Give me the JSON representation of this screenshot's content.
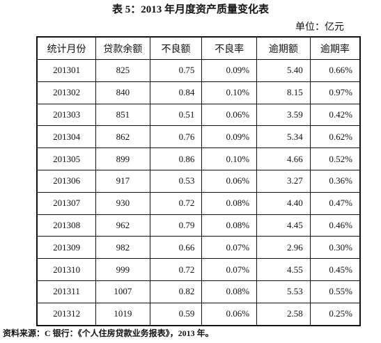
{
  "header": {
    "title": "表 5：2013 年月度资产质量变化表",
    "unit": "单位：亿元"
  },
  "table": {
    "columns": [
      "统计月份",
      "贷款余额",
      "不良额",
      "不良率",
      "逾期额",
      "逾期率"
    ],
    "rows": [
      [
        "201301",
        "825",
        "0.75",
        "0.09%",
        "5.40",
        "0.66%"
      ],
      [
        "201302",
        "840",
        "0.84",
        "0.10%",
        "8.15",
        "0.97%"
      ],
      [
        "201303",
        "851",
        "0.51",
        "0.06%",
        "3.59",
        "0.42%"
      ],
      [
        "201304",
        "862",
        "0.76",
        "0.09%",
        "5.34",
        "0.62%"
      ],
      [
        "201305",
        "899",
        "0.86",
        "0.10%",
        "4.66",
        "0.52%"
      ],
      [
        "201306",
        "917",
        "0.53",
        "0.06%",
        "3.27",
        "0.36%"
      ],
      [
        "201307",
        "930",
        "0.72",
        "0.08%",
        "4.40",
        "0.47%"
      ],
      [
        "201308",
        "962",
        "0.79",
        "0.08%",
        "4.45",
        "0.46%"
      ],
      [
        "201309",
        "982",
        "0.66",
        "0.07%",
        "2.96",
        "0.30%"
      ],
      [
        "201310",
        "999",
        "0.72",
        "0.07%",
        "4.55",
        "0.45%"
      ],
      [
        "201311",
        "1007",
        "0.82",
        "0.08%",
        "5.53",
        "0.55%"
      ],
      [
        "201312",
        "1019",
        "0.59",
        "0.06%",
        "2.58",
        "0.25%"
      ]
    ]
  },
  "footer": {
    "source": "资料来源：C 银行：《个人住房贷款业务报表》，2013 年。"
  }
}
